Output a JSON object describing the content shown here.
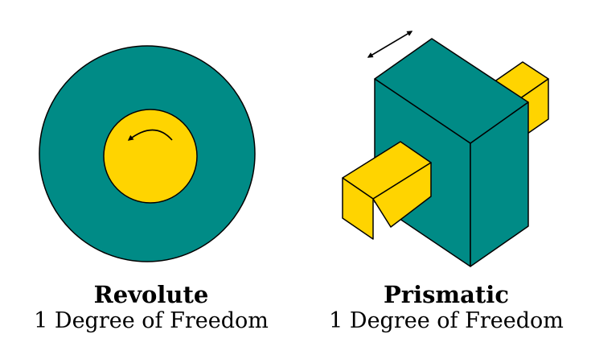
{
  "colors": {
    "teal": "#008b86",
    "yellow": "#ffd400",
    "stroke": "#000000",
    "background": "#ffffff"
  },
  "joints": [
    {
      "title": "Revolute",
      "subtitle": "1 Degree of Freedom",
      "motion_icon": "curved-rotation-arrow-icon"
    },
    {
      "title": "Prismatic",
      "subtitle": "1 Degree of Freedom",
      "motion_icon": "double-headed-arrow-icon"
    }
  ]
}
